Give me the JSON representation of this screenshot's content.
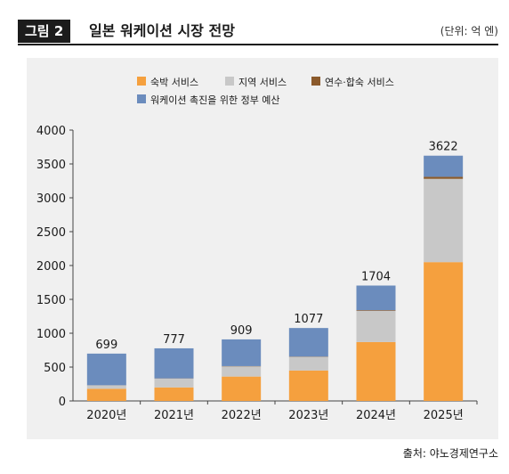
{
  "header": {
    "figure_label": "그림 2",
    "title": "일본 워케이션 시장 전망",
    "unit": "(단위: 억 엔)"
  },
  "source": "출처: 야노경제연구소",
  "chart_data": {
    "type": "bar",
    "stacked": true,
    "categories": [
      "2020년",
      "2021년",
      "2022년",
      "2023년",
      "2024년",
      "2025년"
    ],
    "series": [
      {
        "name": "숙박 서비스",
        "color": "#f5a03e",
        "values": [
          180,
          200,
          360,
          450,
          870,
          2050
        ]
      },
      {
        "name": "지역 서비스",
        "color": "#c8c8c8",
        "values": [
          50,
          130,
          150,
          200,
          460,
          1230
        ]
      },
      {
        "name": "연수·합숙 서비스",
        "color": "#8b5a2b",
        "values": [
          2,
          3,
          4,
          5,
          10,
          30
        ]
      },
      {
        "name": "워케이션 촉진을 위한 정부 예산",
        "color": "#6b8cbd",
        "values": [
          467,
          444,
          395,
          422,
          364,
          312
        ]
      }
    ],
    "totals": [
      699,
      777,
      909,
      1077,
      1704,
      3622
    ],
    "ylim": [
      0,
      4000
    ],
    "yticks": [
      0,
      500,
      1000,
      1500,
      2000,
      2500,
      3000,
      3500,
      4000
    ],
    "grid": false,
    "legend_position": "top"
  }
}
